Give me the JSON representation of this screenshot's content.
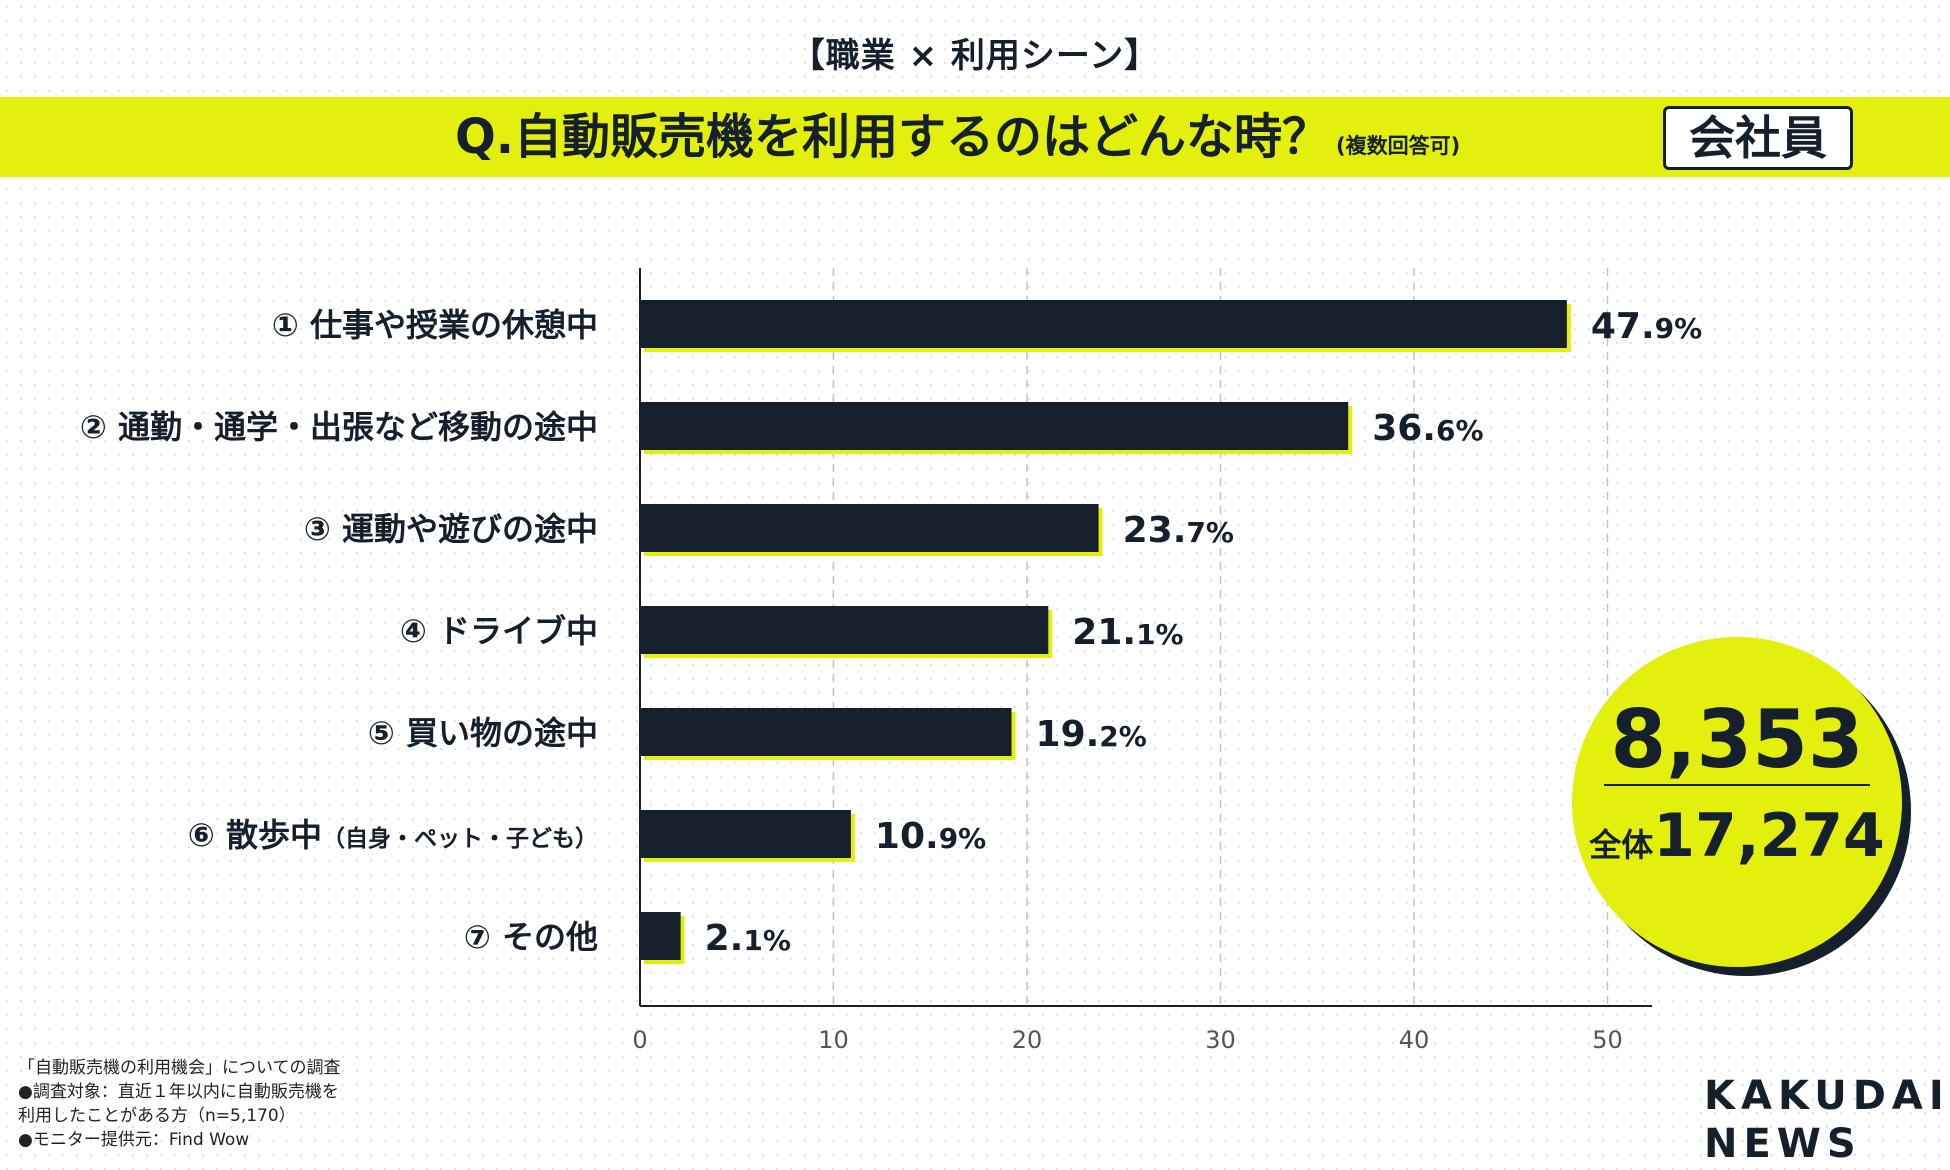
{
  "header": {
    "title": "【職業 × 利用シーン】",
    "question": "Q.自動販売機を利用するのはどんな時？",
    "question_note": "(複数回答可)",
    "segment": "会社員"
  },
  "badge": {
    "value": "8,353",
    "total_label": "全体",
    "total_value": "17,274"
  },
  "footnote": {
    "line1": "「自動販売機の利用機会」についての調査",
    "line2": "●調査対象：直近１年以内に自動販売機を",
    "line3": "利用したことがある方（n=5,170）",
    "line4": "●モニター提供元：Find Wow"
  },
  "brand": {
    "line1": "KAKUDAI",
    "line2": "NEWS"
  },
  "colors": {
    "bar": "#16202c",
    "accent": "#e3ef0c",
    "text": "#16202c"
  },
  "chart_data": {
    "type": "bar",
    "orientation": "horizontal",
    "categories": [
      "① 仕事や授業の休憩中",
      "② 通勤・通学・出張など移動の途中",
      "③ 運動や遊びの途中",
      "④ ドライブ中",
      "⑤ 買い物の途中",
      "⑥ 散歩中",
      "⑦ その他"
    ],
    "category_notes": [
      "",
      "",
      "",
      "",
      "",
      "（自身・ペット・子ども）",
      ""
    ],
    "values": [
      47.9,
      36.6,
      23.7,
      21.1,
      19.2,
      10.9,
      2.1
    ],
    "value_unit": "%",
    "xlim": [
      0,
      52
    ],
    "xticks": [
      0,
      10,
      20,
      30,
      40,
      50
    ],
    "grid": true
  }
}
